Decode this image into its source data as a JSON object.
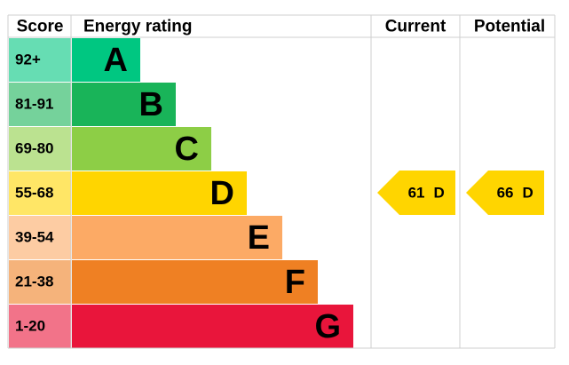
{
  "header": {
    "score": "Score",
    "rating": "Energy rating",
    "current": "Current",
    "potential": "Potential"
  },
  "bands": [
    {
      "score": "92+",
      "letter": "A",
      "color": "#00c781"
    },
    {
      "score": "81-91",
      "letter": "B",
      "color": "#19b459"
    },
    {
      "score": "69-80",
      "letter": "C",
      "color": "#8dce46"
    },
    {
      "score": "55-68",
      "letter": "D",
      "color": "#ffd500"
    },
    {
      "score": "39-54",
      "letter": "E",
      "color": "#fcaa65"
    },
    {
      "score": "21-38",
      "letter": "F",
      "color": "#ef8023"
    },
    {
      "score": "1-20",
      "letter": "G",
      "color": "#e9153b"
    }
  ],
  "current": {
    "value": 61,
    "letter": "D"
  },
  "potential": {
    "value": 66,
    "letter": "D"
  }
}
